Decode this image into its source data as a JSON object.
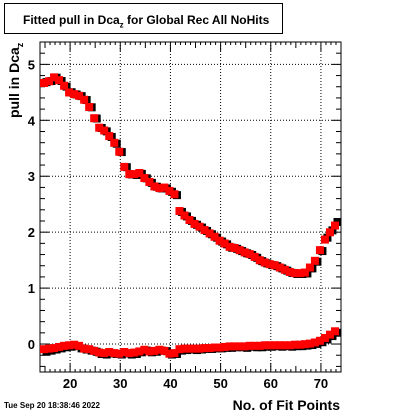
{
  "title": {
    "prefix": "Fitted pull in Dca",
    "subscript": "z",
    "suffix": " for Global Rec All NoHits"
  },
  "timestamp": "Tue Sep 20 18:38:46 2022",
  "colors": {
    "series_a": "#000000",
    "series_b": "#ff0000",
    "grid": "#000000"
  },
  "chart_data": {
    "type": "scatter",
    "xlabel": "No. of Fit Points",
    "ylabel_main": "pull in Dca",
    "ylabel_sub": "z",
    "xlim": [
      14,
      74
    ],
    "ylim": [
      -0.5,
      5.4
    ],
    "xticks": [
      20,
      30,
      40,
      50,
      60,
      70
    ],
    "yticks": [
      0,
      1,
      2,
      3,
      4,
      5
    ],
    "grid": true,
    "series": [
      {
        "color": "#000000",
        "sigma": [
          [
            15,
            4.7
          ],
          [
            16,
            4.72
          ],
          [
            17,
            4.78
          ],
          [
            18,
            4.72
          ],
          [
            19,
            4.62
          ],
          [
            20,
            4.52
          ],
          [
            21,
            4.48
          ],
          [
            22,
            4.45
          ],
          [
            23,
            4.38
          ],
          [
            24,
            4.25
          ],
          [
            25,
            4.05
          ],
          [
            26,
            3.88
          ],
          [
            27,
            3.82
          ],
          [
            28,
            3.72
          ],
          [
            29,
            3.6
          ],
          [
            30,
            3.45
          ],
          [
            31,
            3.18
          ],
          [
            32,
            3.05
          ],
          [
            33,
            3.04
          ],
          [
            34,
            3.06
          ],
          [
            35,
            2.98
          ],
          [
            36,
            2.9
          ],
          [
            37,
            2.83
          ],
          [
            38,
            2.8
          ],
          [
            39,
            2.8
          ],
          [
            40,
            2.74
          ],
          [
            41,
            2.68
          ],
          [
            42,
            2.38
          ],
          [
            43,
            2.3
          ],
          [
            44,
            2.22
          ],
          [
            45,
            2.15
          ],
          [
            46,
            2.1
          ],
          [
            47,
            2.04
          ],
          [
            48,
            1.98
          ],
          [
            49,
            1.92
          ],
          [
            50,
            1.85
          ],
          [
            51,
            1.8
          ],
          [
            52,
            1.74
          ],
          [
            53,
            1.72
          ],
          [
            54,
            1.68
          ],
          [
            55,
            1.64
          ],
          [
            56,
            1.61
          ],
          [
            57,
            1.56
          ],
          [
            58,
            1.5
          ],
          [
            59,
            1.46
          ],
          [
            60,
            1.43
          ],
          [
            61,
            1.41
          ],
          [
            62,
            1.37
          ],
          [
            63,
            1.33
          ],
          [
            64,
            1.29
          ],
          [
            65,
            1.27
          ],
          [
            66,
            1.27
          ],
          [
            67,
            1.28
          ],
          [
            68,
            1.37
          ],
          [
            69,
            1.49
          ],
          [
            70,
            1.68
          ],
          [
            71,
            1.92
          ],
          [
            72,
            2.05
          ],
          [
            73,
            2.2
          ]
        ],
        "mean": [
          [
            15,
            -0.12
          ],
          [
            16,
            -0.1
          ],
          [
            17,
            -0.08
          ],
          [
            18,
            -0.06
          ],
          [
            19,
            -0.04
          ],
          [
            20,
            -0.03
          ],
          [
            21,
            -0.02
          ],
          [
            22,
            -0.06
          ],
          [
            23,
            -0.08
          ],
          [
            24,
            -0.1
          ],
          [
            25,
            -0.12
          ],
          [
            26,
            -0.16
          ],
          [
            27,
            -0.17
          ],
          [
            28,
            -0.15
          ],
          [
            29,
            -0.16
          ],
          [
            30,
            -0.17
          ],
          [
            31,
            -0.15
          ],
          [
            32,
            -0.17
          ],
          [
            33,
            -0.16
          ],
          [
            34,
            -0.13
          ],
          [
            35,
            -0.1
          ],
          [
            36,
            -0.13
          ],
          [
            37,
            -0.12
          ],
          [
            38,
            -0.1
          ],
          [
            39,
            -0.11
          ],
          [
            40,
            -0.17
          ],
          [
            41,
            -0.16
          ],
          [
            42,
            -0.1
          ],
          [
            43,
            -0.09
          ],
          [
            44,
            -0.08
          ],
          [
            45,
            -0.09
          ],
          [
            46,
            -0.08
          ],
          [
            47,
            -0.07
          ],
          [
            48,
            -0.07
          ],
          [
            49,
            -0.06
          ],
          [
            50,
            -0.06
          ],
          [
            51,
            -0.05
          ],
          [
            52,
            -0.05
          ],
          [
            53,
            -0.04
          ],
          [
            54,
            -0.04
          ],
          [
            55,
            -0.05
          ],
          [
            56,
            -0.03
          ],
          [
            57,
            -0.04
          ],
          [
            58,
            -0.04
          ],
          [
            59,
            -0.03
          ],
          [
            60,
            -0.03
          ],
          [
            61,
            -0.02
          ],
          [
            62,
            -0.03
          ],
          [
            63,
            -0.02
          ],
          [
            64,
            -0.03
          ],
          [
            65,
            -0.02
          ],
          [
            66,
            -0.02
          ],
          [
            67,
            -0.01
          ],
          [
            68,
            0.0
          ],
          [
            69,
            0.02
          ],
          [
            70,
            0.05
          ],
          [
            71,
            0.1
          ],
          [
            72,
            0.16
          ],
          [
            73,
            0.22
          ]
        ]
      },
      {
        "color": "#ff0000",
        "sigma": [
          [
            15,
            4.65
          ],
          [
            16,
            4.68
          ],
          [
            17,
            4.75
          ],
          [
            18,
            4.7
          ],
          [
            19,
            4.6
          ],
          [
            20,
            4.48
          ],
          [
            21,
            4.45
          ],
          [
            22,
            4.42
          ],
          [
            23,
            4.35
          ],
          [
            24,
            4.22
          ],
          [
            25,
            4.02
          ],
          [
            26,
            3.85
          ],
          [
            27,
            3.8
          ],
          [
            28,
            3.7
          ],
          [
            29,
            3.58
          ],
          [
            30,
            3.42
          ],
          [
            31,
            3.15
          ],
          [
            32,
            3.02
          ],
          [
            33,
            3.02
          ],
          [
            34,
            3.04
          ],
          [
            35,
            2.95
          ],
          [
            36,
            2.88
          ],
          [
            37,
            2.8
          ],
          [
            38,
            2.77
          ],
          [
            39,
            2.78
          ],
          [
            40,
            2.72
          ],
          [
            41,
            2.66
          ],
          [
            42,
            2.36
          ],
          [
            43,
            2.28
          ],
          [
            44,
            2.2
          ],
          [
            45,
            2.13
          ],
          [
            46,
            2.08
          ],
          [
            47,
            2.02
          ],
          [
            48,
            1.96
          ],
          [
            49,
            1.9
          ],
          [
            50,
            1.83
          ],
          [
            51,
            1.78
          ],
          [
            52,
            1.72
          ],
          [
            53,
            1.7
          ],
          [
            54,
            1.66
          ],
          [
            55,
            1.62
          ],
          [
            56,
            1.59
          ],
          [
            57,
            1.54
          ],
          [
            58,
            1.48
          ],
          [
            59,
            1.44
          ],
          [
            60,
            1.41
          ],
          [
            61,
            1.39
          ],
          [
            62,
            1.35
          ],
          [
            63,
            1.31
          ],
          [
            64,
            1.27
          ],
          [
            65,
            1.25
          ],
          [
            66,
            1.25
          ],
          [
            67,
            1.26
          ],
          [
            68,
            1.35
          ],
          [
            69,
            1.47
          ],
          [
            70,
            1.66
          ],
          [
            71,
            1.85
          ],
          [
            72,
            1.98
          ],
          [
            73,
            2.1
          ]
        ],
        "mean": [
          [
            15,
            -0.11
          ],
          [
            16,
            -0.1
          ],
          [
            17,
            -0.09
          ],
          [
            18,
            -0.07
          ],
          [
            19,
            -0.05
          ],
          [
            20,
            -0.04
          ],
          [
            21,
            -0.03
          ],
          [
            22,
            -0.05
          ],
          [
            23,
            -0.1
          ],
          [
            24,
            -0.11
          ],
          [
            25,
            -0.14
          ],
          [
            26,
            -0.17
          ],
          [
            27,
            -0.18
          ],
          [
            28,
            -0.16
          ],
          [
            29,
            -0.18
          ],
          [
            30,
            -0.19
          ],
          [
            31,
            -0.16
          ],
          [
            32,
            -0.18
          ],
          [
            33,
            -0.17
          ],
          [
            34,
            -0.15
          ],
          [
            35,
            -0.12
          ],
          [
            36,
            -0.15
          ],
          [
            37,
            -0.14
          ],
          [
            38,
            -0.12
          ],
          [
            39,
            -0.14
          ],
          [
            40,
            -0.19
          ],
          [
            41,
            -0.18
          ],
          [
            42,
            -0.11
          ],
          [
            43,
            -0.1
          ],
          [
            44,
            -0.1
          ],
          [
            45,
            -0.1
          ],
          [
            46,
            -0.1
          ],
          [
            47,
            -0.09
          ],
          [
            48,
            -0.09
          ],
          [
            49,
            -0.08
          ],
          [
            50,
            -0.08
          ],
          [
            51,
            -0.07
          ],
          [
            52,
            -0.06
          ],
          [
            53,
            -0.06
          ],
          [
            54,
            -0.06
          ],
          [
            55,
            -0.06
          ],
          [
            56,
            -0.05
          ],
          [
            57,
            -0.05
          ],
          [
            58,
            -0.05
          ],
          [
            59,
            -0.04
          ],
          [
            60,
            -0.04
          ],
          [
            61,
            -0.04
          ],
          [
            62,
            -0.04
          ],
          [
            63,
            -0.04
          ],
          [
            64,
            -0.04
          ],
          [
            65,
            -0.03
          ],
          [
            66,
            -0.03
          ],
          [
            67,
            -0.02
          ],
          [
            68,
            -0.01
          ],
          [
            69,
            0.01
          ],
          [
            70,
            0.04
          ],
          [
            71,
            0.09
          ],
          [
            72,
            0.15
          ],
          [
            73,
            0.21
          ]
        ]
      }
    ]
  }
}
